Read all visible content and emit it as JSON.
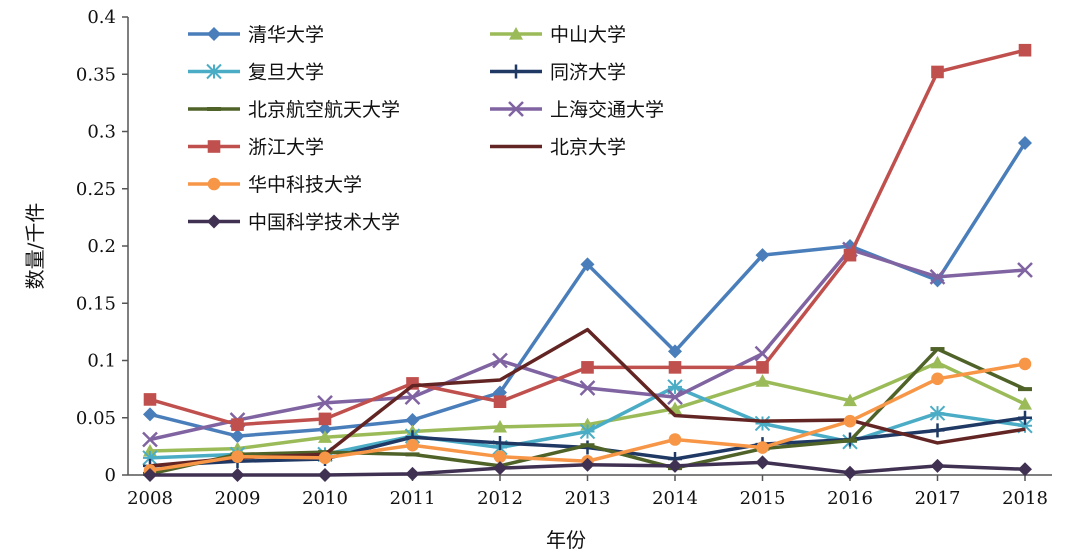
{
  "chart_data": {
    "type": "line",
    "xlabel": "年份",
    "ylabel": "数量/千件",
    "ylim": [
      0,
      0.4
    ],
    "y_ticks": [
      "0",
      "0.05",
      "0.1",
      "0.15",
      "0.2",
      "0.25",
      "0.3",
      "0.35",
      "0.4"
    ],
    "categories": [
      "2008",
      "2009",
      "2010",
      "2011",
      "2012",
      "2013",
      "2014",
      "2015",
      "2016",
      "2017",
      "2018"
    ],
    "grid": false,
    "legend_position": "top-left",
    "series": [
      {
        "name": "清华大学",
        "color": "#4a7ebb",
        "marker": "diamond",
        "values": [
          0.053,
          0.034,
          0.04,
          0.048,
          0.072,
          0.184,
          0.108,
          0.192,
          0.2,
          0.17,
          0.29
        ]
      },
      {
        "name": "中山大学",
        "color": "#9bbb59",
        "marker": "triangle",
        "values": [
          0.021,
          0.023,
          0.033,
          0.038,
          0.042,
          0.044,
          0.058,
          0.082,
          0.065,
          0.098,
          0.062
        ]
      },
      {
        "name": "复旦大学",
        "color": "#4bacc6",
        "marker": "asterisk",
        "values": [
          0.015,
          0.018,
          0.018,
          0.034,
          0.024,
          0.038,
          0.077,
          0.045,
          0.029,
          0.054,
          0.043
        ]
      },
      {
        "name": "同济大学",
        "color": "#1f3864",
        "marker": "plus",
        "values": [
          0.008,
          0.012,
          0.014,
          0.033,
          0.028,
          0.024,
          0.014,
          0.027,
          0.031,
          0.039,
          0.05
        ]
      },
      {
        "name": "北京航空航天大学",
        "color": "#4f6228",
        "marker": "dash",
        "values": [
          0.001,
          0.018,
          0.02,
          0.018,
          0.008,
          0.026,
          0.006,
          0.023,
          0.03,
          0.11,
          0.075
        ]
      },
      {
        "name": "上海交通大学",
        "color": "#8064a2",
        "marker": "x",
        "values": [
          0.031,
          0.048,
          0.063,
          0.068,
          0.1,
          0.076,
          0.068,
          0.106,
          0.197,
          0.173,
          0.179
        ]
      },
      {
        "name": "浙江大学",
        "color": "#c0504d",
        "marker": "square",
        "values": [
          0.066,
          0.044,
          0.049,
          0.08,
          0.064,
          0.094,
          0.094,
          0.094,
          0.192,
          0.352,
          0.371
        ]
      },
      {
        "name": "北京大学",
        "color": "#632523",
        "marker": "none",
        "values": [
          0.008,
          0.015,
          0.018,
          0.078,
          0.083,
          0.127,
          0.052,
          0.047,
          0.048,
          0.028,
          0.04
        ]
      },
      {
        "name": "华中科技大学",
        "color": "#f79646",
        "marker": "circle",
        "values": [
          0.004,
          0.016,
          0.015,
          0.026,
          0.016,
          0.012,
          0.031,
          0.024,
          0.047,
          0.084,
          0.097
        ]
      },
      {
        "name": "中国科学技术大学",
        "color": "#403152",
        "marker": "diamond",
        "values": [
          0.0,
          0.0,
          0.0,
          0.001,
          0.006,
          0.009,
          0.008,
          0.011,
          0.002,
          0.008,
          0.005
        ]
      }
    ]
  }
}
